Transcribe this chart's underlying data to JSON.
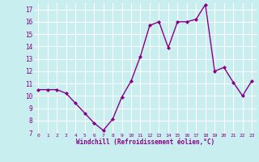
{
  "x": [
    0,
    1,
    2,
    3,
    4,
    5,
    6,
    7,
    8,
    9,
    10,
    11,
    12,
    13,
    14,
    15,
    16,
    17,
    18,
    19,
    20,
    21,
    22,
    23
  ],
  "y": [
    10.5,
    10.5,
    10.5,
    10.2,
    9.4,
    8.6,
    7.8,
    7.2,
    8.1,
    9.9,
    11.2,
    13.2,
    15.7,
    16.0,
    13.9,
    16.0,
    16.0,
    16.2,
    17.4,
    12.0,
    12.3,
    11.1,
    10.0,
    11.2
  ],
  "line_color": "#880088",
  "marker": "D",
  "marker_size": 2,
  "bg_color": "#c8eef0",
  "grid_color": "#ffffff",
  "xlabel": "Windchill (Refroidissement éolien,°C)",
  "xlabel_color": "#880088",
  "tick_color": "#880088",
  "ylim": [
    7,
    17.5
  ],
  "yticks": [
    7,
    8,
    9,
    10,
    11,
    12,
    13,
    14,
    15,
    16,
    17
  ],
  "xlim": [
    -0.5,
    23.5
  ],
  "xticks": [
    0,
    1,
    2,
    3,
    4,
    5,
    6,
    7,
    8,
    9,
    10,
    11,
    12,
    13,
    14,
    15,
    16,
    17,
    18,
    19,
    20,
    21,
    22,
    23
  ],
  "line_width": 1.0
}
